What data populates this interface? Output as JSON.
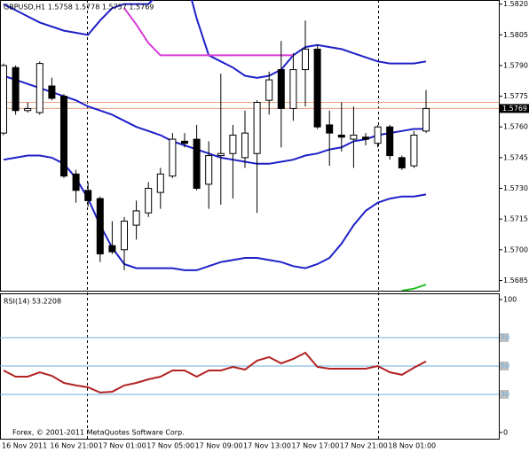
{
  "chart_data": [
    {
      "type": "candlestick",
      "title": "GBPUSD,H1  1.5758 1.5778 1.5757 1.5769",
      "categories": [
        "16 Nov 2011",
        null,
        null,
        null,
        "16 Nov 21:00",
        null,
        null,
        null,
        "17 Nov 01:00",
        null,
        null,
        null,
        "17 Nov 05:00",
        null,
        null,
        null,
        "17 Nov 09:00",
        null,
        null,
        null,
        "17 Nov 13:00",
        null,
        null,
        null,
        "17 Nov 17:00",
        null,
        null,
        null,
        "17 Nov 21:00",
        null,
        null,
        null,
        "18 Nov 01:00",
        null,
        null,
        null
      ],
      "open": [
        1.5757,
        1.5789,
        1.5768,
        1.5767,
        1.578,
        1.5775,
        1.5737,
        1.5729,
        1.5725,
        1.5702,
        1.57,
        1.5712,
        1.5718,
        1.5728,
        1.5736,
        1.5753,
        1.5754,
        1.5732,
        1.5746,
        1.5747,
        1.5745,
        1.5747,
        1.5773,
        1.5788,
        1.5769,
        1.5788,
        1.5798,
        1.5761,
        1.5756,
        1.5754,
        1.5755,
        1.5752,
        1.576,
        1.5745,
        1.5741,
        1.5758
      ],
      "high": [
        1.5791,
        1.579,
        1.5772,
        1.5792,
        1.5784,
        1.5776,
        1.5739,
        1.5733,
        1.5726,
        1.5714,
        1.5716,
        1.5724,
        1.5733,
        1.574,
        1.5757,
        1.5757,
        1.5761,
        1.5753,
        1.5786,
        1.5761,
        1.5768,
        1.5773,
        1.5787,
        1.5802,
        1.5796,
        1.5812,
        1.58,
        1.5768,
        1.5772,
        1.577,
        1.5757,
        1.5761,
        1.5761,
        1.5746,
        1.5758,
        1.5778
      ],
      "low": [
        1.5756,
        1.5766,
        1.5767,
        1.5766,
        1.5773,
        1.5735,
        1.5723,
        1.5721,
        1.5694,
        1.5698,
        1.569,
        1.5705,
        1.5716,
        1.572,
        1.5735,
        1.575,
        1.5729,
        1.572,
        1.5722,
        1.5725,
        1.574,
        1.5718,
        1.5766,
        1.575,
        1.5763,
        1.577,
        1.5759,
        1.5741,
        1.5748,
        1.574,
        1.5751,
        1.575,
        1.5744,
        1.5739,
        1.574,
        1.5757
      ],
      "close": [
        1.579,
        1.5768,
        1.5769,
        1.5791,
        1.5774,
        1.5736,
        1.5729,
        1.5724,
        1.5698,
        1.5699,
        1.5714,
        1.5719,
        1.573,
        1.5737,
        1.5754,
        1.5752,
        1.573,
        1.5746,
        1.5747,
        1.5756,
        1.5757,
        1.5772,
        1.5783,
        1.5769,
        1.5788,
        1.5798,
        1.576,
        1.5757,
        1.5755,
        1.5756,
        1.5754,
        1.576,
        1.5746,
        1.574,
        1.5756,
        1.5769
      ],
      "up_color": "#ffffff",
      "down_color": "#000000",
      "wick_color": "#000000",
      "overlays": [
        {
          "color": "#1f1fc8",
          "values": [
            1.582,
            1.5817,
            1.5814,
            1.5811,
            1.5809,
            1.5807,
            1.5806,
            1.5805,
            1.5812,
            1.5818,
            1.582,
            1.582,
            1.582,
            1.5826,
            1.5833,
            1.5835,
            1.5813,
            1.5795,
            1.5792,
            1.5789,
            1.5785,
            1.5784,
            1.5785,
            1.5788,
            1.5795,
            1.5799,
            1.58,
            1.5799,
            1.5798,
            1.5796,
            1.5794,
            1.5792,
            1.5791,
            1.5791,
            1.5791,
            1.5792
          ]
        },
        {
          "color": "#1f1fc8",
          "values": [
            1.5785,
            1.5783,
            1.5781,
            1.5779,
            1.5777,
            1.5775,
            1.5773,
            1.577,
            1.5768,
            1.5766,
            1.5763,
            1.576,
            1.5758,
            1.5756,
            1.5753,
            1.5751,
            1.5749,
            1.5747,
            1.5745,
            1.5744,
            1.5743,
            1.5742,
            1.5742,
            1.5743,
            1.5744,
            1.5746,
            1.5747,
            1.5749,
            1.575,
            1.5753,
            1.5754,
            1.5756,
            1.5757,
            1.5758,
            1.5759,
            1.5759
          ]
        },
        {
          "color": "#1f1fc8",
          "values": [
            1.5744,
            1.5745,
            1.5746,
            1.5746,
            1.5745,
            1.5742,
            1.5735,
            1.5725,
            1.5712,
            1.5701,
            1.5693,
            1.5691,
            1.5691,
            1.5691,
            1.5691,
            1.569,
            1.569,
            1.5692,
            1.5694,
            1.5695,
            1.5696,
            1.5696,
            1.5695,
            1.5694,
            1.5692,
            1.5691,
            1.5693,
            1.5696,
            1.5703,
            1.5712,
            1.5719,
            1.5723,
            1.5725,
            1.5726,
            1.5726,
            1.5727
          ]
        },
        {
          "color": "#d63ad6",
          "values": [
            null,
            null,
            null,
            null,
            null,
            null,
            null,
            null,
            null,
            null,
            1.5818,
            1.581,
            1.5801,
            1.5795,
            1.5795,
            1.5795,
            1.5795,
            1.5795,
            1.5795,
            1.5795,
            1.5795,
            1.5795,
            1.5795,
            1.5795,
            1.5795,
            null,
            null,
            null,
            null,
            null,
            null,
            null,
            null,
            null,
            null,
            null
          ]
        },
        {
          "color": "#22c022",
          "values": [
            null,
            null,
            null,
            null,
            null,
            null,
            null,
            null,
            null,
            null,
            null,
            null,
            null,
            null,
            null,
            null,
            null,
            null,
            null,
            null,
            null,
            null,
            null,
            null,
            null,
            null,
            null,
            null,
            null,
            null,
            null,
            null,
            null,
            1.568,
            1.5681,
            1.5683
          ]
        }
      ],
      "ask_line": 1.5772,
      "ask_color": "#f2a07a",
      "bid_line": 1.5769,
      "bid_color": "#e8967a",
      "ylim": [
        1.568,
        1.5822
      ],
      "yticks": [
        {
          "value": 1.582,
          "label": "1.5820"
        },
        1.5805,
        {
          "value": 1.579,
          "label": "1.5790"
        },
        1.5775,
        {
          "value": 1.576,
          "label": "1.5760"
        },
        1.5745,
        {
          "value": 1.573,
          "label": "1.5730"
        },
        1.5715,
        {
          "value": 1.57,
          "label": "1.5700"
        },
        1.5685
      ]
    },
    {
      "type": "line",
      "title": "RSI(14) 53.2208",
      "values": [
        46.9,
        42.5,
        42.5,
        45.6,
        43.1,
        38.1,
        36.3,
        35,
        31.3,
        31.9,
        36.3,
        38.1,
        40.6,
        42.5,
        46.9,
        46.9,
        42.5,
        46.9,
        46.9,
        49.4,
        47.5,
        53.8,
        56.3,
        51.9,
        55,
        59.4,
        49.4,
        48.1,
        48.1,
        48.1,
        48.1,
        50,
        45.6,
        43.8,
        48.8,
        53.2208
      ],
      "color": "#b22222",
      "level_color": "#6aaee0",
      "ylim": [
        0,
        100
      ],
      "yticks": [
        0,
        30,
        50,
        70,
        100
      ],
      "footer": "Forex, © 2001-2011 MetaQuotes Software Corp."
    }
  ]
}
